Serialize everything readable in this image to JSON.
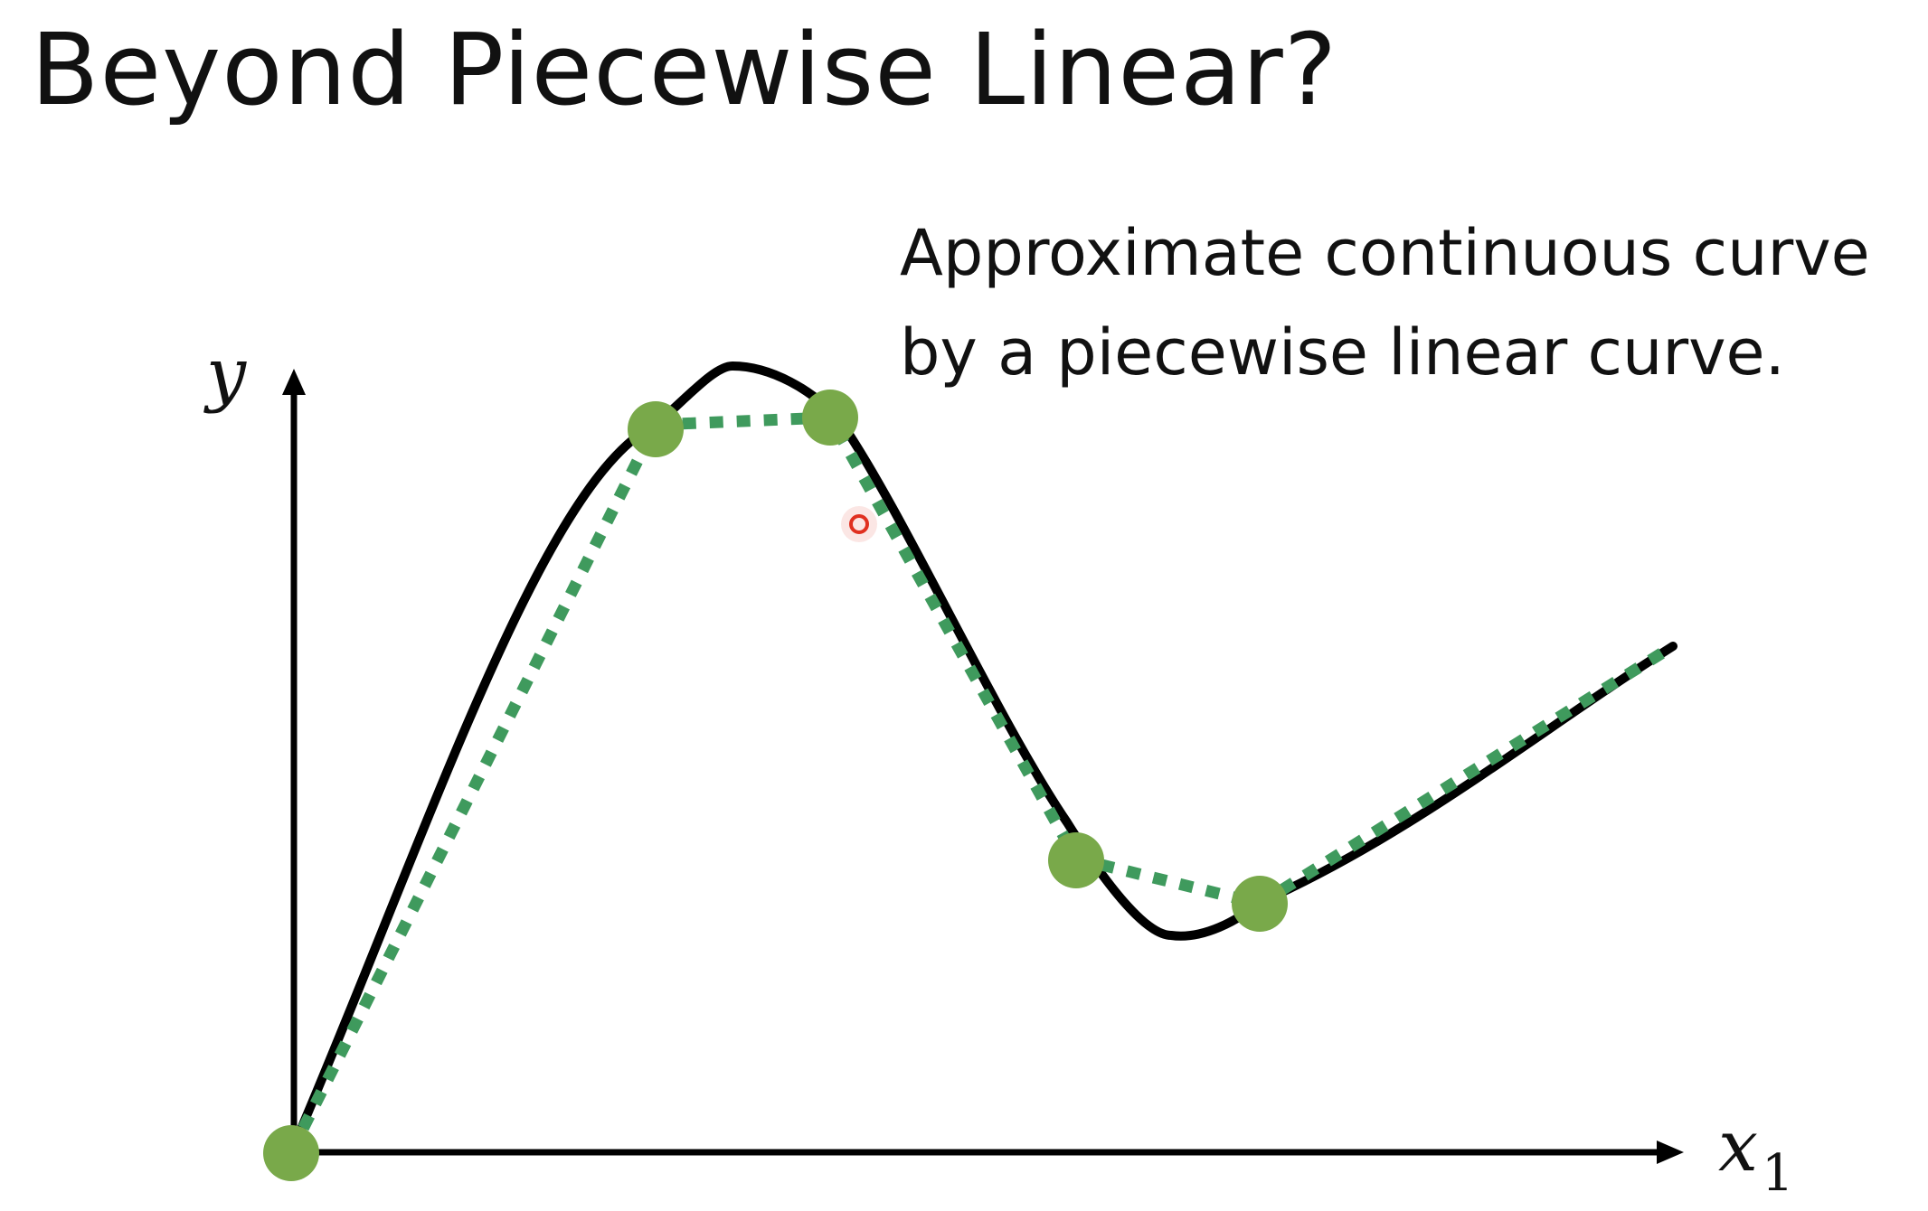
{
  "slide": {
    "title": "Beyond Piecewise Linear?",
    "caption_lines": [
      "Approximate continuous curve",
      "by a piecewise linear curve."
    ]
  },
  "axes": {
    "y_label": "y",
    "x_label": "x",
    "x_subscript": "1"
  },
  "colors": {
    "curve": "#000000",
    "piecewise": "#3f9a5d",
    "knots": "#79a94a",
    "cursor": "#e03020",
    "text": "#111111"
  },
  "icons": {
    "cursor": "pointer-dot-icon"
  }
}
